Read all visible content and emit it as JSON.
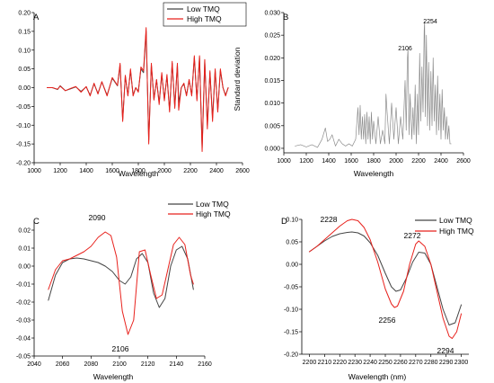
{
  "chart_data": [
    {
      "id": "A",
      "panel_label": "A",
      "type": "line",
      "title": "",
      "xlabel": "Wavelength",
      "ylabel": "",
      "xlim": [
        1000,
        2600
      ],
      "ylim": [
        -0.2,
        0.2
      ],
      "xticks": [
        "1000",
        "1200",
        "1400",
        "1600",
        "1800",
        "2000",
        "2200",
        "2400",
        "2600"
      ],
      "yticks": [
        "-0.20",
        "-0.15",
        "-0.10",
        "-0.05",
        "0.00",
        "0.05",
        "0.10",
        "0.15",
        "0.20"
      ],
      "grid": false,
      "legend": "top-right",
      "series": [
        {
          "name": "Low TMQ",
          "color": "#444444",
          "x": [
            1100,
            1140,
            1180,
            1200,
            1240,
            1280,
            1320,
            1360,
            1400,
            1430,
            1460,
            1490,
            1520,
            1560,
            1600,
            1640,
            1660,
            1680,
            1700,
            1720,
            1740,
            1760,
            1780,
            1800,
            1820,
            1840,
            1860,
            1880,
            1900,
            1920,
            1940,
            1960,
            1980,
            2000,
            2020,
            2040,
            2060,
            2080,
            2100,
            2110,
            2130,
            2150,
            2170,
            2190,
            2210,
            2230,
            2250,
            2270,
            2290,
            2310,
            2330,
            2350,
            2370,
            2390,
            2410,
            2430,
            2450,
            2470,
            2490
          ],
          "y": [
            0,
            0,
            -0.005,
            0.005,
            -0.008,
            -0.003,
            0.002,
            -0.01,
            0.002,
            -0.02,
            0.01,
            -0.015,
            0.015,
            -0.02,
            0.025,
            0.005,
            0.06,
            -0.085,
            0.03,
            -0.02,
            0.045,
            -0.02,
            0.0,
            -0.01,
            0.05,
            0.04,
            0.15,
            -0.14,
            0.06,
            -0.03,
            0.02,
            -0.04,
            0.035,
            -0.03,
            0.03,
            -0.06,
            0.065,
            -0.05,
            0.06,
            -0.04,
            0.0,
            0.01,
            -0.02,
            0.02,
            -0.02,
            0.08,
            -0.03,
            0.08,
            -0.16,
            0.07,
            -0.1,
            0.04,
            -0.08,
            0.045,
            -0.06,
            0.045,
            0.0,
            -0.02,
            0.0
          ]
        },
        {
          "name": "High TMQ",
          "color": "#e8211c",
          "x": [
            1100,
            1140,
            1180,
            1200,
            1240,
            1280,
            1320,
            1360,
            1400,
            1430,
            1460,
            1490,
            1520,
            1560,
            1600,
            1640,
            1660,
            1680,
            1700,
            1720,
            1740,
            1760,
            1780,
            1800,
            1820,
            1840,
            1860,
            1880,
            1900,
            1920,
            1940,
            1960,
            1980,
            2000,
            2020,
            2040,
            2060,
            2080,
            2100,
            2110,
            2130,
            2150,
            2170,
            2190,
            2210,
            2230,
            2250,
            2270,
            2290,
            2310,
            2330,
            2350,
            2370,
            2390,
            2410,
            2430,
            2450,
            2470,
            2490
          ],
          "y": [
            0,
            0,
            -0.004,
            0.004,
            -0.008,
            -0.002,
            0.003,
            -0.012,
            0.003,
            -0.022,
            0.012,
            -0.017,
            0.016,
            -0.022,
            0.027,
            0.006,
            0.065,
            -0.09,
            0.033,
            -0.022,
            0.05,
            -0.022,
            0.0,
            -0.012,
            0.055,
            0.045,
            0.16,
            -0.15,
            0.065,
            -0.033,
            0.022,
            -0.045,
            0.04,
            -0.035,
            0.035,
            -0.065,
            0.07,
            -0.055,
            0.065,
            -0.06,
            0.0,
            0.012,
            -0.022,
            0.022,
            -0.022,
            0.085,
            -0.035,
            0.085,
            -0.17,
            0.075,
            -0.11,
            0.045,
            -0.09,
            0.05,
            -0.065,
            0.05,
            0.0,
            -0.022,
            0.0
          ]
        }
      ]
    },
    {
      "id": "B",
      "panel_label": "B",
      "type": "line",
      "title": "",
      "xlabel": "Wavelength",
      "ylabel": "Standard deviation",
      "xlim": [
        1000,
        2600
      ],
      "ylim": [
        -0.001,
        0.03
      ],
      "xticks": [
        "1000",
        "1200",
        "1400",
        "1600",
        "1800",
        "2000",
        "2200",
        "2400",
        "2600"
      ],
      "yticks": [
        "0.000",
        "0.005",
        "0.010",
        "0.015",
        "0.020",
        "0.025",
        "0.030"
      ],
      "grid": false,
      "legend": "none",
      "annotations": [
        "2106",
        "2254"
      ],
      "series": [
        {
          "name": "",
          "color": "#8c8c8c",
          "x": [
            1100,
            1150,
            1200,
            1250,
            1300,
            1340,
            1370,
            1390,
            1410,
            1430,
            1460,
            1490,
            1520,
            1550,
            1580,
            1610,
            1640,
            1660,
            1670,
            1680,
            1690,
            1700,
            1710,
            1720,
            1730,
            1740,
            1750,
            1760,
            1770,
            1780,
            1790,
            1800,
            1820,
            1840,
            1860,
            1880,
            1900,
            1910,
            1920,
            1940,
            1960,
            1980,
            2000,
            2020,
            2040,
            2060,
            2080,
            2090,
            2100,
            2106,
            2115,
            2125,
            2140,
            2150,
            2160,
            2170,
            2180,
            2190,
            2200,
            2210,
            2220,
            2230,
            2240,
            2250,
            2254,
            2260,
            2270,
            2280,
            2290,
            2300,
            2310,
            2320,
            2330,
            2340,
            2350,
            2360,
            2370,
            2380,
            2390,
            2400,
            2410,
            2420,
            2430,
            2440,
            2450,
            2460,
            2470,
            2480,
            2490
          ],
          "y": [
            0.0005,
            0.0008,
            0.0003,
            0.0008,
            0.0002,
            0.002,
            0.0045,
            0.0015,
            0.002,
            0.003,
            0.0005,
            0.002,
            0.001,
            0.0005,
            0.001,
            0.0005,
            0.002,
            0.009,
            0.003,
            0.0095,
            0.002,
            0.007,
            0.002,
            0.0075,
            0.001,
            0.008,
            0.002,
            0.007,
            0.001,
            0.008,
            0.002,
            0.006,
            0.001,
            0.007,
            0.001,
            0.004,
            0.001,
            0.012,
            0.008,
            0.001,
            0.01,
            0.002,
            0.009,
            0.001,
            0.007,
            0.002,
            0.015,
            0.004,
            0.0195,
            0.022,
            0.003,
            0.012,
            0.002,
            0.009,
            0.003,
            0.014,
            0.001,
            0.012,
            0.003,
            0.021,
            0.006,
            0.018,
            0.008,
            0.026,
            0.028,
            0.007,
            0.025,
            0.005,
            0.019,
            0.004,
            0.017,
            0.005,
            0.02,
            0.006,
            0.014,
            0.003,
            0.016,
            0.004,
            0.012,
            0.002,
            0.013,
            0.004,
            0.009,
            0.002,
            0.007,
            0.002,
            0.005,
            0.001,
            0.001
          ]
        }
      ]
    },
    {
      "id": "C",
      "panel_label": "C",
      "type": "line",
      "title": "",
      "xlabel": "Wavelength",
      "ylabel": "",
      "xlim": [
        2040,
        2160
      ],
      "ylim": [
        -0.05,
        0.025
      ],
      "xticks": [
        "2040",
        "2060",
        "2080",
        "2100",
        "2120",
        "2140",
        "2160"
      ],
      "yticks": [
        "-0.05",
        "-0.04",
        "-0.03",
        "-0.02",
        "-0.01",
        "0.00",
        "0.01",
        "0.02"
      ],
      "grid": false,
      "legend": "top-right",
      "annotations": [
        "2090",
        "2106"
      ],
      "series": [
        {
          "name": "Low TMQ",
          "color": "#444444",
          "x": [
            2050,
            2055,
            2060,
            2065,
            2070,
            2075,
            2080,
            2085,
            2090,
            2095,
            2100,
            2104,
            2108,
            2112,
            2116,
            2120,
            2124,
            2128,
            2132,
            2136,
            2140,
            2144,
            2148,
            2152
          ],
          "y": [
            -0.019,
            -0.005,
            0.002,
            0.004,
            0.0045,
            0.004,
            0.003,
            0.002,
            0.0,
            -0.003,
            -0.008,
            -0.01,
            -0.006,
            0.004,
            0.007,
            0.002,
            -0.015,
            -0.023,
            -0.018,
            0.0,
            0.009,
            0.011,
            0.004,
            -0.013
          ]
        },
        {
          "name": "High TMQ",
          "color": "#e8211c",
          "x": [
            2050,
            2055,
            2060,
            2065,
            2070,
            2075,
            2080,
            2085,
            2090,
            2094,
            2098,
            2102,
            2106,
            2110,
            2114,
            2118,
            2122,
            2126,
            2130,
            2134,
            2138,
            2142,
            2146,
            2150,
            2152
          ],
          "y": [
            -0.013,
            -0.002,
            0.003,
            0.004,
            0.006,
            0.008,
            0.011,
            0.016,
            0.019,
            0.017,
            0.005,
            -0.025,
            -0.038,
            -0.03,
            0.008,
            0.009,
            -0.005,
            -0.018,
            -0.016,
            -0.002,
            0.012,
            0.016,
            0.012,
            -0.005,
            -0.01
          ]
        }
      ]
    },
    {
      "id": "D",
      "panel_label": "D",
      "type": "line",
      "title": "",
      "xlabel": "Wavelength (nm)",
      "ylabel": "",
      "xlim": [
        2195,
        2305
      ],
      "ylim": [
        -0.2,
        0.1
      ],
      "xticks": [
        "2200",
        "2210",
        "2220",
        "2230",
        "2240",
        "2250",
        "2260",
        "2270",
        "2280",
        "2290",
        "2300"
      ],
      "yticks": [
        "-0.20",
        "-0.15",
        "-0.10",
        "-0.05",
        "0.00",
        "0.05",
        "0.10"
      ],
      "grid": false,
      "legend": "top-right",
      "annotations": [
        "2228",
        "2256",
        "2272",
        "2294"
      ],
      "series": [
        {
          "name": "Low TMQ",
          "color": "#444444",
          "x": [
            2200,
            2205,
            2210,
            2215,
            2220,
            2225,
            2228,
            2232,
            2236,
            2240,
            2245,
            2250,
            2254,
            2257,
            2260,
            2264,
            2268,
            2272,
            2276,
            2280,
            2284,
            2288,
            2292,
            2296,
            2300
          ],
          "y": [
            0.028,
            0.04,
            0.052,
            0.062,
            0.068,
            0.071,
            0.072,
            0.07,
            0.063,
            0.048,
            0.02,
            -0.02,
            -0.05,
            -0.06,
            -0.057,
            -0.03,
            0.005,
            0.027,
            0.025,
            0.0,
            -0.05,
            -0.1,
            -0.135,
            -0.13,
            -0.09
          ]
        },
        {
          "name": "High TMQ",
          "color": "#e8211c",
          "x": [
            2200,
            2205,
            2210,
            2215,
            2220,
            2225,
            2228,
            2232,
            2236,
            2240,
            2245,
            2250,
            2254,
            2256,
            2258,
            2262,
            2266,
            2270,
            2272,
            2276,
            2280,
            2284,
            2288,
            2292,
            2294,
            2297,
            2300
          ],
          "y": [
            0.028,
            0.04,
            0.055,
            0.07,
            0.085,
            0.097,
            0.1,
            0.097,
            0.082,
            0.055,
            0.005,
            -0.055,
            -0.088,
            -0.096,
            -0.093,
            -0.06,
            0.0,
            0.045,
            0.052,
            0.04,
            0.0,
            -0.06,
            -0.12,
            -0.16,
            -0.165,
            -0.15,
            -0.11
          ]
        }
      ]
    }
  ]
}
